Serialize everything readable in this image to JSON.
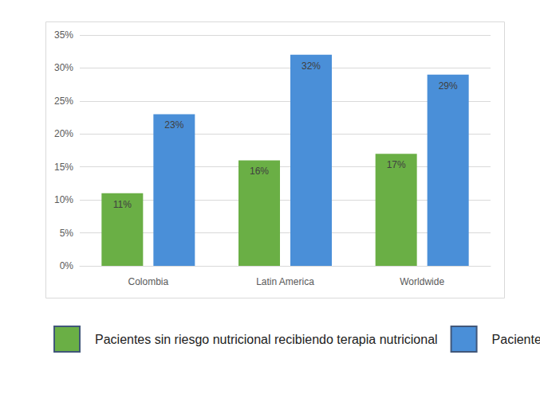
{
  "chart_data": {
    "type": "bar",
    "categories": [
      "Colombia",
      "Latin America",
      "Worldwide"
    ],
    "series": [
      {
        "name": "Pacientes sin riesgo nutricional recibiendo terapia nutricional",
        "color": "#6aaf45",
        "values": [
          11,
          16,
          17
        ],
        "value_labels": [
          "11%",
          "16%",
          "17%"
        ]
      },
      {
        "name": "Pacientes con riesgo nutricional recibiendo terapia nutricional",
        "color": "#4a8fd8",
        "values": [
          23,
          32,
          29
        ],
        "value_labels": [
          "23%",
          "32%",
          "29%"
        ]
      }
    ],
    "ylim": [
      0,
      35
    ],
    "yticks": [
      {
        "value": 0,
        "label": "0%"
      },
      {
        "value": 5,
        "label": "5%"
      },
      {
        "value": 10,
        "label": "10%"
      },
      {
        "value": 15,
        "label": "15%"
      },
      {
        "value": 20,
        "label": "20%"
      },
      {
        "value": 25,
        "label": "25%"
      },
      {
        "value": 30,
        "label": "30%"
      },
      {
        "value": 35,
        "label": "35%"
      }
    ],
    "grid": true,
    "legend": "bottom",
    "data_labels": true
  }
}
